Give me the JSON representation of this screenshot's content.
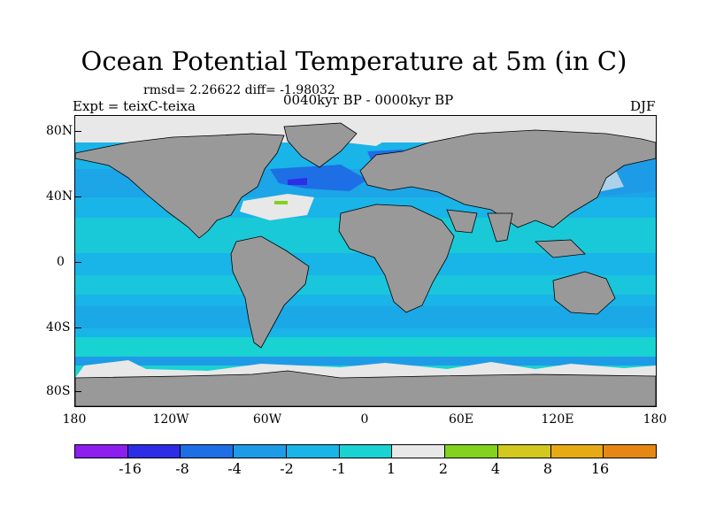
{
  "title": "Ocean Potential Temperature at 5m (in C)",
  "stats": "rmsd= 2.26622 diff= -1.98032",
  "expt": "Expt = teixC-teixa",
  "period": "0040kyr BP - 0000kyr BP",
  "season": "DJF",
  "y_axis_labels": [
    "80N",
    "40N",
    "0",
    "40S",
    "80S"
  ],
  "x_axis_labels": [
    "180",
    "120W",
    "60W",
    "0",
    "60E",
    "120E",
    "180"
  ],
  "colorbar": {
    "colors": [
      "#8c1ef0",
      "#2d2de6",
      "#1e6ee6",
      "#1e9be6",
      "#19b4e8",
      "#19d2d2",
      "#e8e8e8",
      "#82d21e",
      "#d2c81e",
      "#e6aa14",
      "#e68714",
      "#e6641e",
      "#e63214"
    ],
    "labels": [
      "-16",
      "-8",
      "-4",
      "-2",
      "-1",
      "1",
      "2",
      "4",
      "8",
      "16"
    ]
  },
  "land_color": "#999999"
}
